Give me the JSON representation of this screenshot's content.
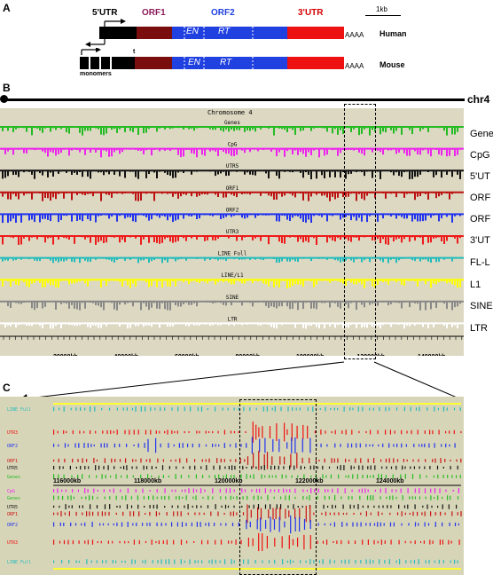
{
  "panel_a": {
    "label": "A",
    "domain_5utr": "5'UTR",
    "domain_orf1": "ORF1",
    "domain_orf2": "ORF2",
    "domain_3utr": "3'UTR",
    "scale": "1kb",
    "en": "EN",
    "rt": "RT",
    "polya_human": "AAAA",
    "polya_mouse": "AAAA",
    "species_human": "Human",
    "species_mouse": "Mouse",
    "monomers": "monomers",
    "tether": "t",
    "colors": {
      "black": "#000000",
      "orf1": "#7a0d0d",
      "orf2": "#2040e0",
      "utr3": "#ee1111",
      "title_orf1": "#8b1a5a",
      "title_orf2": "#2040e0",
      "title_3utr": "#d40000"
    }
  },
  "panel_b": {
    "label": "B",
    "chromosome": "chr4",
    "title": "Chromosome 4",
    "tracks": [
      {
        "name": "Genes",
        "label": "Genes",
        "side": "Gene",
        "color": "#22bb22"
      },
      {
        "name": "CpG",
        "label": "CpG",
        "side": "CpG",
        "color": "#ee22ee"
      },
      {
        "name": "UTR5",
        "label": "UTR5",
        "side": "5'UT",
        "color": "#111111"
      },
      {
        "name": "ORF1",
        "label": "ORF1",
        "side": "ORF",
        "color": "#bb1111"
      },
      {
        "name": "ORF2",
        "label": "ORF2",
        "side": "ORF",
        "color": "#2233ee"
      },
      {
        "name": "UTR3",
        "label": "UTR3",
        "side": "3'UT",
        "color": "#ee1b1b"
      },
      {
        "name": "LINE Full",
        "label": "LINE Full",
        "side": "FL-L",
        "color": "#22bbbb"
      },
      {
        "name": "LINE/L1",
        "label": "LINE/L1",
        "side": "L1",
        "color": "#ffff00"
      },
      {
        "name": "SINE",
        "label": "SINE",
        "side": "SINE",
        "color": "#888888"
      },
      {
        "name": "LTR",
        "label": "LTR",
        "side": "LTR",
        "color": "#ffffff"
      }
    ],
    "ticks": [
      "20000kb",
      "40000kb",
      "60000kb",
      "80000kb",
      "100000kb",
      "120000kb",
      "140000kb"
    ]
  },
  "panel_c": {
    "label": "C",
    "ticks": [
      "116000kb",
      "118000kb",
      "120000kb",
      "122000kb",
      "124000kb"
    ],
    "upper": [
      {
        "name": "LINE Full",
        "label": "LINE Full",
        "color": "#22bbbb"
      },
      {
        "name": "UTR3",
        "label": "UTR3",
        "color": "#ee1111"
      },
      {
        "name": "ORF2",
        "label": "ORF2",
        "color": "#2233ee"
      },
      {
        "name": "ORF1",
        "label": "ORF1",
        "color": "#cc1111"
      },
      {
        "name": "UTR5",
        "label": "UTR5",
        "color": "#111111"
      },
      {
        "name": "Genes",
        "label": "Genes",
        "color": "#22bb22"
      }
    ],
    "lower": [
      {
        "name": "CpG",
        "label": "CpG",
        "color": "#ee22ee"
      },
      {
        "name": "Genes",
        "label": "Genes",
        "color": "#22bb22"
      },
      {
        "name": "UTR5",
        "label": "UTR5",
        "color": "#111111"
      },
      {
        "name": "ORF1",
        "label": "ORF1",
        "color": "#cc1111"
      },
      {
        "name": "ORF2",
        "label": "ORF2",
        "color": "#2233ee"
      },
      {
        "name": "UTR3",
        "label": "UTR3",
        "color": "#ee1111"
      },
      {
        "name": "LINE Full",
        "label": "LINE Full",
        "color": "#22bbbb"
      }
    ]
  }
}
